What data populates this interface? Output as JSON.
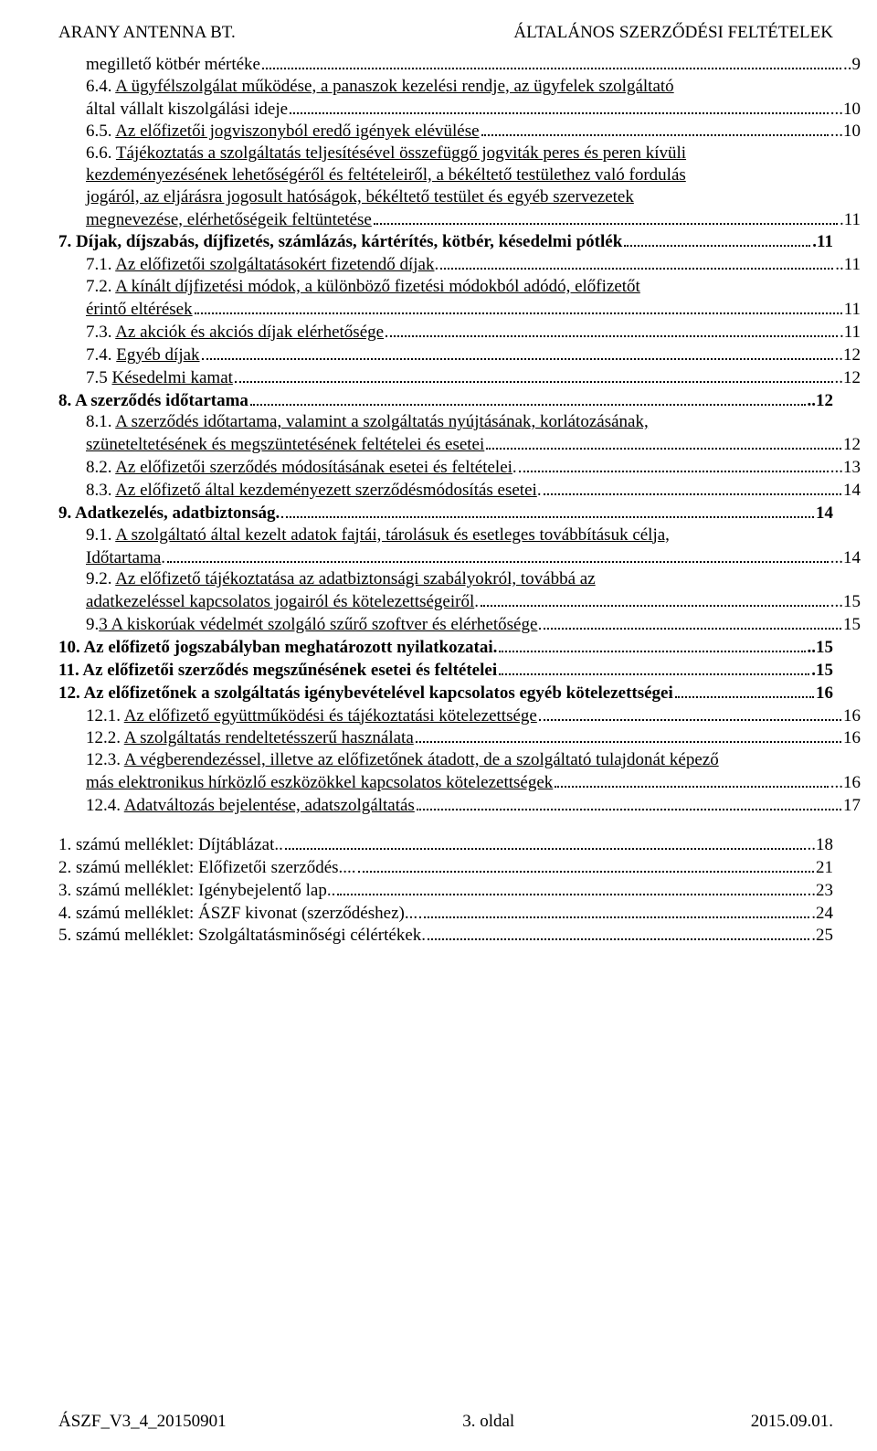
{
  "header": {
    "left": "ARANY ANTENNA BT.",
    "right": "ÁLTALÁNOS SZERZŐDÉSI FELTÉTELEK"
  },
  "toc": {
    "r1": {
      "text": "megillető kötbér mértéke",
      "page": "..9"
    },
    "r2a": {
      "text": "6.4. ",
      "link": "A ügyfélszolgálat működése, a panaszok kezelési rendje, az ügyfelek szolgáltató"
    },
    "r2b": {
      "text": "által vállalt kiszolgálási ideje",
      "page": "...10"
    },
    "r3": {
      "text": "6.5. ",
      "link": "Az előfizetői jogviszonyból eredő igények elévülése",
      "page": "...10"
    },
    "r4a": {
      "text": "6.6. ",
      "link": "Tájékoztatás a szolgáltatás teljesítésével összefüggő jogviták peres és peren kívüli"
    },
    "r4b": {
      "link": "kezdeményezésének lehetőségéről és feltételeiről, a békéltető testülethez való fordulás"
    },
    "r4c": {
      "link": "jogáról, az eljárásra jogosult hatóságok, békéltető testület és egyéb szervezetek"
    },
    "r4d": {
      "link": "megnevezése, elérhetőségeik feltüntetése",
      "page": ".11"
    },
    "r5": {
      "text": "7. Díjak, díjszabás, díjfizetés, számlázás, kártérítés, kötbér, késedelmi pótlék",
      "page": ".11"
    },
    "r6": {
      "text": "7.1. ",
      "link": "Az előfizetői szolgáltatásokért fizetendő díjak",
      "post": ".",
      "page": "..11"
    },
    "r7a": {
      "text": "7.2. ",
      "link": "A kínált díjfizetési módok, a különböző fizetési módokból adódó, előfizetőt"
    },
    "r7b": {
      "link": "érintő eltérések",
      "page": "11"
    },
    "r8": {
      "text": "7.3. ",
      "link": "Az akciók és akciós díjak elérhetősége",
      "page": ".11"
    },
    "r9": {
      "text": "7.4. ",
      "link": "Egyéb díjak",
      "page": "..12"
    },
    "r10": {
      "text": "7.5 ",
      "link": "Késedelmi kamat",
      "page": "..12"
    },
    "r11": {
      "text": "8. A szerződés időtartama",
      "page": "..12"
    },
    "r12a": {
      "text": "8.1. ",
      "link": "A szerződés időtartama, valamint a szolgáltatás nyújtásának, korlátozásának,"
    },
    "r12b": {
      "link": "szüneteltetésének és megszüntetésének feltételei és esetei",
      "page": "12"
    },
    "r13": {
      "text": "8.2. ",
      "link": "Az előfizetői szerződés módosításának esetei és feltételei",
      "post": ".",
      "page": "...13"
    },
    "r14": {
      "text": "8.3. ",
      "link": "Az előfizető által kezdeményezett szerződésmódosítás esetei",
      "post": ".",
      "page": "14"
    },
    "r15": {
      "text": "9. Adatkezelés, adatbiztonság",
      "post": ".",
      "page": "14"
    },
    "r16a": {
      "text": "9.1. ",
      "link": "A szolgáltató által kezelt adatok fajtái, tárolásuk és esetleges továbbításuk célja,"
    },
    "r16b": {
      "link": "Időtartama",
      "post": ".",
      "page": "...14"
    },
    "r17a": {
      "text": "9.2. ",
      "link": "Az előfizető tájékoztatása az adatbiztonsági szabályokról, továbbá az"
    },
    "r17b": {
      "link": "adatkezeléssel kapcsolatos jogairól és kötelezettségeiről",
      "post": ".",
      "page": "...15"
    },
    "r18": {
      "text": "9.",
      "link": "3 A kiskorúak védelmét szolgáló szűrő szoftver és elérhetősége",
      "page": "15"
    },
    "r19": {
      "text": "10. Az előfizető jogszabályban meghatározott nyilatkozatai",
      "post": ".",
      "page": "..15"
    },
    "r20": {
      "text": "11. Az előfizetői szerződés megszűnésének esetei és feltételei",
      "page": ".15"
    },
    "r21": {
      "text": "12. Az előfizetőnek a szolgáltatás igénybevételével kapcsolatos egyéb kötelezettségei",
      "page": " 16"
    },
    "r22": {
      "text": "12.1. ",
      "link": "Az előfizető együttműködési és tájékoztatási kötelezettsége",
      "page": "16"
    },
    "r23": {
      "text": "12.2. ",
      "link": "A szolgáltatás rendeltetésszerű használata",
      "page": "16"
    },
    "r24a": {
      "text": "12.3. ",
      "link": "A végberendezéssel, illetve az előfizetőnek átadott, de a szolgáltató tulajdonát képező"
    },
    "r24b": {
      "link": " más elektronikus hírközlő eszközökkel kapcsolatos kötelezettségek",
      "page": "...16"
    },
    "r25": {
      "text": "12.4. ",
      "link": "Adatváltozás bejelentése, adatszolgáltatás",
      "page": "17"
    },
    "a1": {
      "text": "1. számú melléklet: Díjtáblázat",
      "post": "..",
      "page": "..18"
    },
    "a2": {
      "text": "2. számú melléklet: Előfizetői szerződés",
      "post": "....",
      "page": "21"
    },
    "a3": {
      "text": "3. számú melléklet: Igénybejelentő lap",
      "post": "..",
      "page": "..23"
    },
    "a4": {
      "text": "4. számú melléklet: ÁSZF kivonat (szerződéshez)",
      "post": "...",
      "page": ".24"
    },
    "a5": {
      "text": "5. számú melléklet: Szolgáltatásminőségi célértékek",
      "post": ".",
      "page": ".25"
    }
  },
  "footer": {
    "left": "ÁSZF_V3_4_20150901",
    "center": "3. oldal",
    "right": "2015.09.01."
  }
}
